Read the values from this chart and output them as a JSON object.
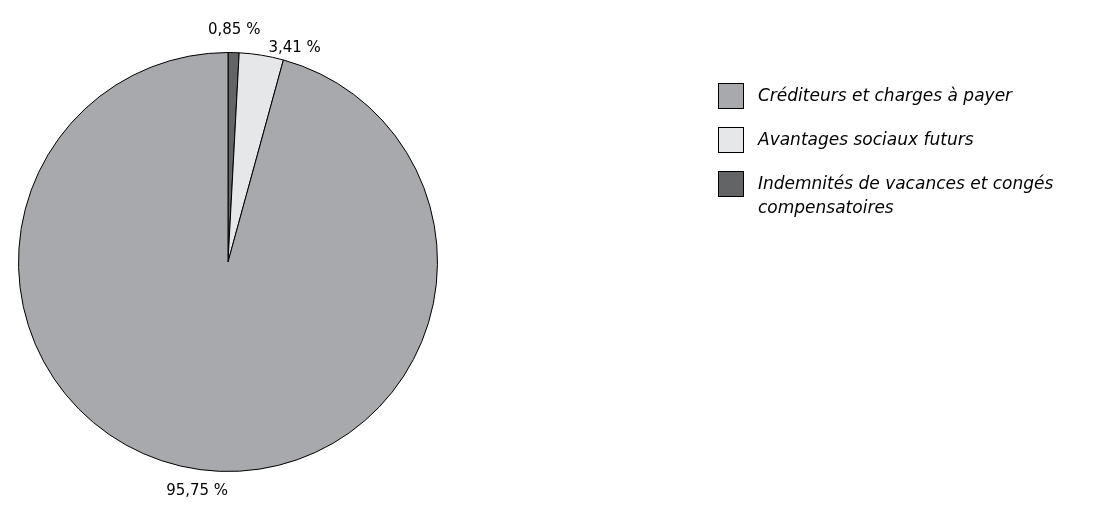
{
  "chart_data": {
    "type": "pie",
    "categories": [
      "Créditeurs et charges à payer",
      "Avantages sociaux futurs",
      "Indemnités de vacances et congés compensatoires"
    ],
    "values": [
      95.75,
      3.41,
      0.85
    ],
    "colors": [
      "#a7a9ac",
      "#e6e7e8",
      "#636466"
    ],
    "value_labels": [
      "95,75 %",
      "3,41 %",
      "0,85 %"
    ],
    "legend": "right"
  }
}
